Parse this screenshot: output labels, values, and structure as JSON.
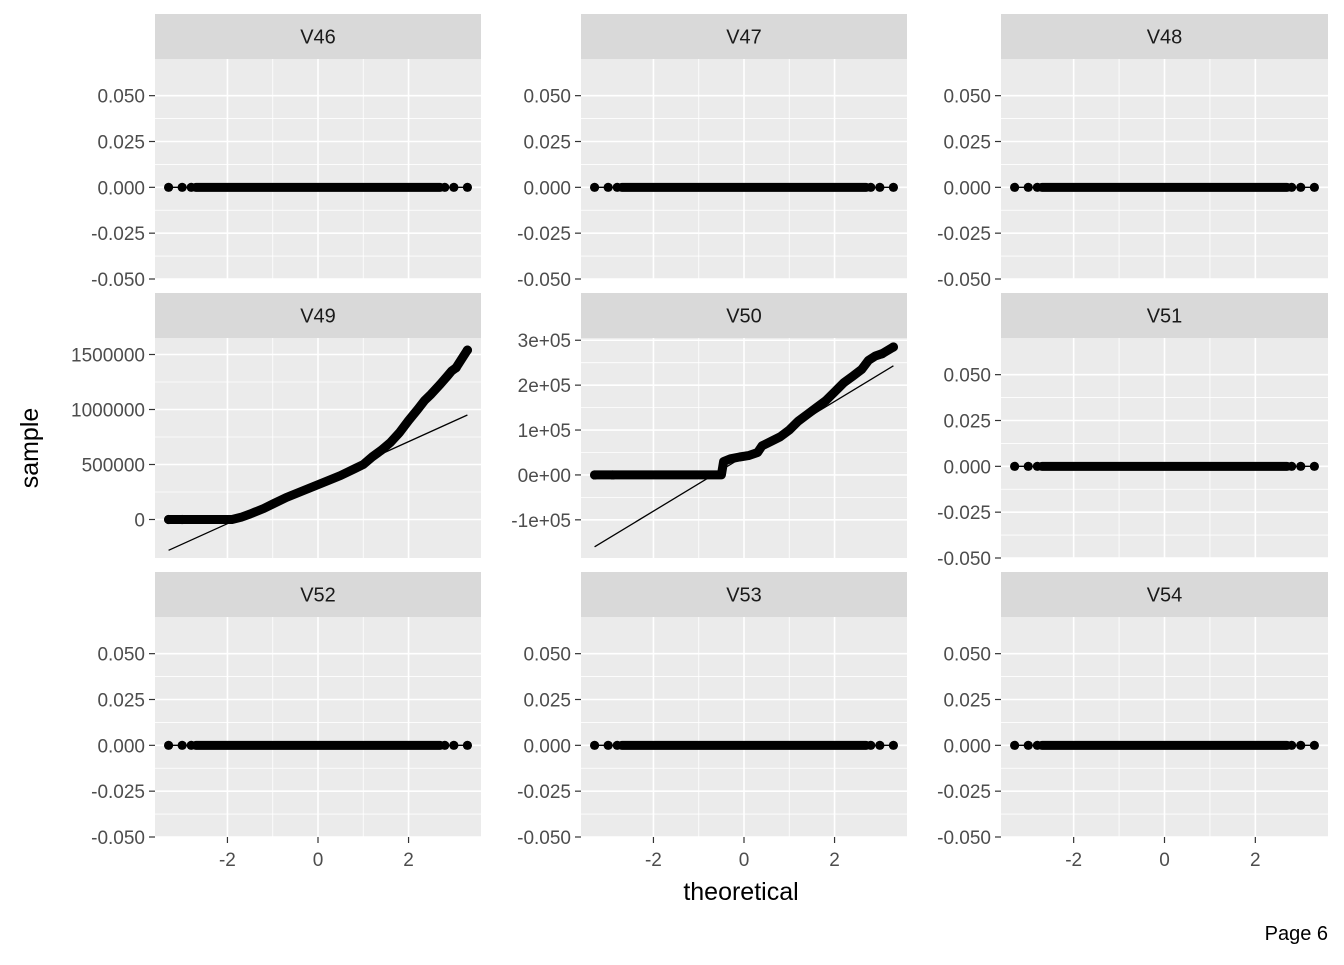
{
  "page_label": "Page 6",
  "colors": {
    "panel_bg": "#ebebeb",
    "strip_bg": "#d9d9d9",
    "grid": "#ffffff",
    "point": "#000000",
    "line": "#000000"
  },
  "chart_data": {
    "type": "scatter",
    "subtype": "qq-plot-facets",
    "xlabel": "theoretical",
    "ylabel": "sample",
    "x_ticks": [
      -2,
      0,
      2
    ],
    "x_tick_labels": [
      "-2",
      "0",
      "2"
    ],
    "xlim": [
      -3.6,
      3.6
    ],
    "grid": true,
    "legend": "none",
    "facets": [
      {
        "name": "V46",
        "ylim": [
          -0.05,
          0.07
        ],
        "y_ticks": [
          0.05,
          0.025,
          0,
          -0.025,
          -0.05
        ],
        "y_tick_labels": [
          "0.050",
          "0.025",
          "0.000",
          "-0.025",
          "-0.050"
        ],
        "points": [
          [
            -3.3,
            0
          ],
          [
            -3.0,
            0
          ],
          [
            -2.8,
            0
          ],
          [
            2.8,
            0
          ],
          [
            3.0,
            0
          ],
          [
            3.3,
            0
          ]
        ],
        "dense_segments": [
          {
            "x_from": -2.7,
            "x_to": 2.7,
            "y": 0
          }
        ],
        "ref_line": [
          [
            -3.3,
            0
          ],
          [
            3.3,
            0
          ]
        ]
      },
      {
        "name": "V47",
        "ylim": [
          -0.05,
          0.07
        ],
        "y_ticks": [
          0.05,
          0.025,
          0,
          -0.025,
          -0.05
        ],
        "y_tick_labels": [
          "0.050",
          "0.025",
          "0.000",
          "-0.025",
          "-0.050"
        ],
        "points": [
          [
            -3.3,
            0
          ],
          [
            -3.0,
            0
          ],
          [
            -2.8,
            0
          ],
          [
            2.8,
            0
          ],
          [
            3.0,
            0
          ],
          [
            3.3,
            0
          ]
        ],
        "dense_segments": [
          {
            "x_from": -2.7,
            "x_to": 2.7,
            "y": 0
          }
        ],
        "ref_line": [
          [
            -3.3,
            0
          ],
          [
            3.3,
            0
          ]
        ]
      },
      {
        "name": "V48",
        "ylim": [
          -0.05,
          0.07
        ],
        "y_ticks": [
          0.05,
          0.025,
          0,
          -0.025,
          -0.05
        ],
        "y_tick_labels": [
          "0.050",
          "0.025",
          "0.000",
          "-0.025",
          "-0.050"
        ],
        "points": [
          [
            -3.3,
            0
          ],
          [
            -3.0,
            0
          ],
          [
            -2.8,
            0
          ],
          [
            2.8,
            0
          ],
          [
            3.0,
            0
          ],
          [
            3.3,
            0
          ]
        ],
        "dense_segments": [
          {
            "x_from": -2.7,
            "x_to": 2.7,
            "y": 0
          }
        ],
        "ref_line": [
          [
            -3.3,
            0
          ],
          [
            3.3,
            0
          ]
        ]
      },
      {
        "name": "V49",
        "ylim": [
          -350000,
          1650000
        ],
        "y_ticks": [
          1500000,
          1000000,
          500000,
          0
        ],
        "y_tick_labels": [
          "1500000",
          "1000000",
          "500000",
          "0"
        ],
        "curve": [
          [
            -3.3,
            0
          ],
          [
            -3.0,
            0
          ],
          [
            -2.8,
            0
          ],
          [
            -2.5,
            0
          ],
          [
            -2.2,
            0
          ],
          [
            -1.9,
            0
          ],
          [
            -1.7,
            20000
          ],
          [
            -1.5,
            50000
          ],
          [
            -1.2,
            100000
          ],
          [
            -1.0,
            140000
          ],
          [
            -0.7,
            200000
          ],
          [
            -0.4,
            250000
          ],
          [
            -0.1,
            300000
          ],
          [
            0.2,
            350000
          ],
          [
            0.5,
            400000
          ],
          [
            0.8,
            460000
          ],
          [
            1.0,
            500000
          ],
          [
            1.2,
            570000
          ],
          [
            1.4,
            630000
          ],
          [
            1.6,
            700000
          ],
          [
            1.8,
            790000
          ],
          [
            2.0,
            900000
          ],
          [
            2.2,
            1000000
          ],
          [
            2.35,
            1080000
          ],
          [
            2.5,
            1140000
          ],
          [
            2.7,
            1230000
          ],
          [
            2.85,
            1300000
          ],
          [
            2.95,
            1350000
          ],
          [
            3.05,
            1380000
          ],
          [
            3.3,
            1540000
          ]
        ],
        "ref_line": [
          [
            -3.3,
            -280000
          ],
          [
            3.3,
            950000
          ]
        ]
      },
      {
        "name": "V50",
        "ylim": [
          -185000,
          305000
        ],
        "y_ticks": [
          300000,
          200000,
          100000,
          0,
          -100000
        ],
        "y_tick_labels": [
          "3e+05",
          "2e+05",
          "1e+05",
          "0e+00",
          "-1e+05"
        ],
        "curve": [
          [
            -3.3,
            0
          ],
          [
            -2.9,
            0
          ],
          [
            -2.6,
            0
          ],
          [
            -2.0,
            0
          ],
          [
            -1.5,
            0
          ],
          [
            -1.0,
            0
          ],
          [
            -0.5,
            0
          ],
          [
            -0.45,
            30000
          ],
          [
            -0.3,
            36000
          ],
          [
            -0.1,
            40000
          ],
          [
            0.1,
            43000
          ],
          [
            0.3,
            50000
          ],
          [
            0.4,
            65000
          ],
          [
            0.6,
            75000
          ],
          [
            0.8,
            85000
          ],
          [
            1.0,
            100000
          ],
          [
            1.2,
            120000
          ],
          [
            1.4,
            135000
          ],
          [
            1.6,
            150000
          ],
          [
            1.8,
            165000
          ],
          [
            2.0,
            185000
          ],
          [
            2.2,
            205000
          ],
          [
            2.4,
            220000
          ],
          [
            2.6,
            235000
          ],
          [
            2.75,
            255000
          ],
          [
            2.9,
            265000
          ],
          [
            3.05,
            270000
          ],
          [
            3.3,
            285000
          ]
        ],
        "ref_line": [
          [
            -3.3,
            -160000
          ],
          [
            3.3,
            243000
          ]
        ]
      },
      {
        "name": "V51",
        "ylim": [
          -0.05,
          0.07
        ],
        "y_ticks": [
          0.05,
          0.025,
          0,
          -0.025,
          -0.05
        ],
        "y_tick_labels": [
          "0.050",
          "0.025",
          "0.000",
          "-0.025",
          "-0.050"
        ],
        "points": [
          [
            -3.3,
            0
          ],
          [
            -3.0,
            0
          ],
          [
            -2.8,
            0
          ],
          [
            2.8,
            0
          ],
          [
            3.0,
            0
          ],
          [
            3.3,
            0
          ]
        ],
        "dense_segments": [
          {
            "x_from": -2.7,
            "x_to": 2.7,
            "y": 0
          }
        ],
        "ref_line": [
          [
            -3.3,
            0
          ],
          [
            3.3,
            0
          ]
        ]
      },
      {
        "name": "V52",
        "ylim": [
          -0.05,
          0.07
        ],
        "y_ticks": [
          0.05,
          0.025,
          0,
          -0.025,
          -0.05
        ],
        "y_tick_labels": [
          "0.050",
          "0.025",
          "0.000",
          "-0.025",
          "-0.050"
        ],
        "points": [
          [
            -3.3,
            0
          ],
          [
            -3.0,
            0
          ],
          [
            -2.8,
            0
          ],
          [
            2.8,
            0
          ],
          [
            3.0,
            0
          ],
          [
            3.3,
            0
          ]
        ],
        "dense_segments": [
          {
            "x_from": -2.7,
            "x_to": 2.7,
            "y": 0
          }
        ],
        "ref_line": [
          [
            -3.3,
            0
          ],
          [
            3.3,
            0
          ]
        ]
      },
      {
        "name": "V53",
        "ylim": [
          -0.05,
          0.07
        ],
        "y_ticks": [
          0.05,
          0.025,
          0,
          -0.025,
          -0.05
        ],
        "y_tick_labels": [
          "0.050",
          "0.025",
          "0.000",
          "-0.025",
          "-0.050"
        ],
        "points": [
          [
            -3.3,
            0
          ],
          [
            -3.0,
            0
          ],
          [
            -2.8,
            0
          ],
          [
            2.8,
            0
          ],
          [
            3.0,
            0
          ],
          [
            3.3,
            0
          ]
        ],
        "dense_segments": [
          {
            "x_from": -2.7,
            "x_to": 2.7,
            "y": 0
          }
        ],
        "ref_line": [
          [
            -3.3,
            0
          ],
          [
            3.3,
            0
          ]
        ]
      },
      {
        "name": "V54",
        "ylim": [
          -0.05,
          0.07
        ],
        "y_ticks": [
          0.05,
          0.025,
          0,
          -0.025,
          -0.05
        ],
        "y_tick_labels": [
          "0.050",
          "0.025",
          "0.000",
          "-0.025",
          "-0.050"
        ],
        "points": [
          [
            -3.3,
            0
          ],
          [
            -3.0,
            0
          ],
          [
            -2.8,
            0
          ],
          [
            2.8,
            0
          ],
          [
            3.0,
            0
          ],
          [
            3.3,
            0
          ]
        ],
        "dense_segments": [
          {
            "x_from": -2.7,
            "x_to": 2.7,
            "y": 0
          }
        ],
        "ref_line": [
          [
            -3.3,
            0
          ],
          [
            3.3,
            0
          ]
        ]
      }
    ]
  }
}
